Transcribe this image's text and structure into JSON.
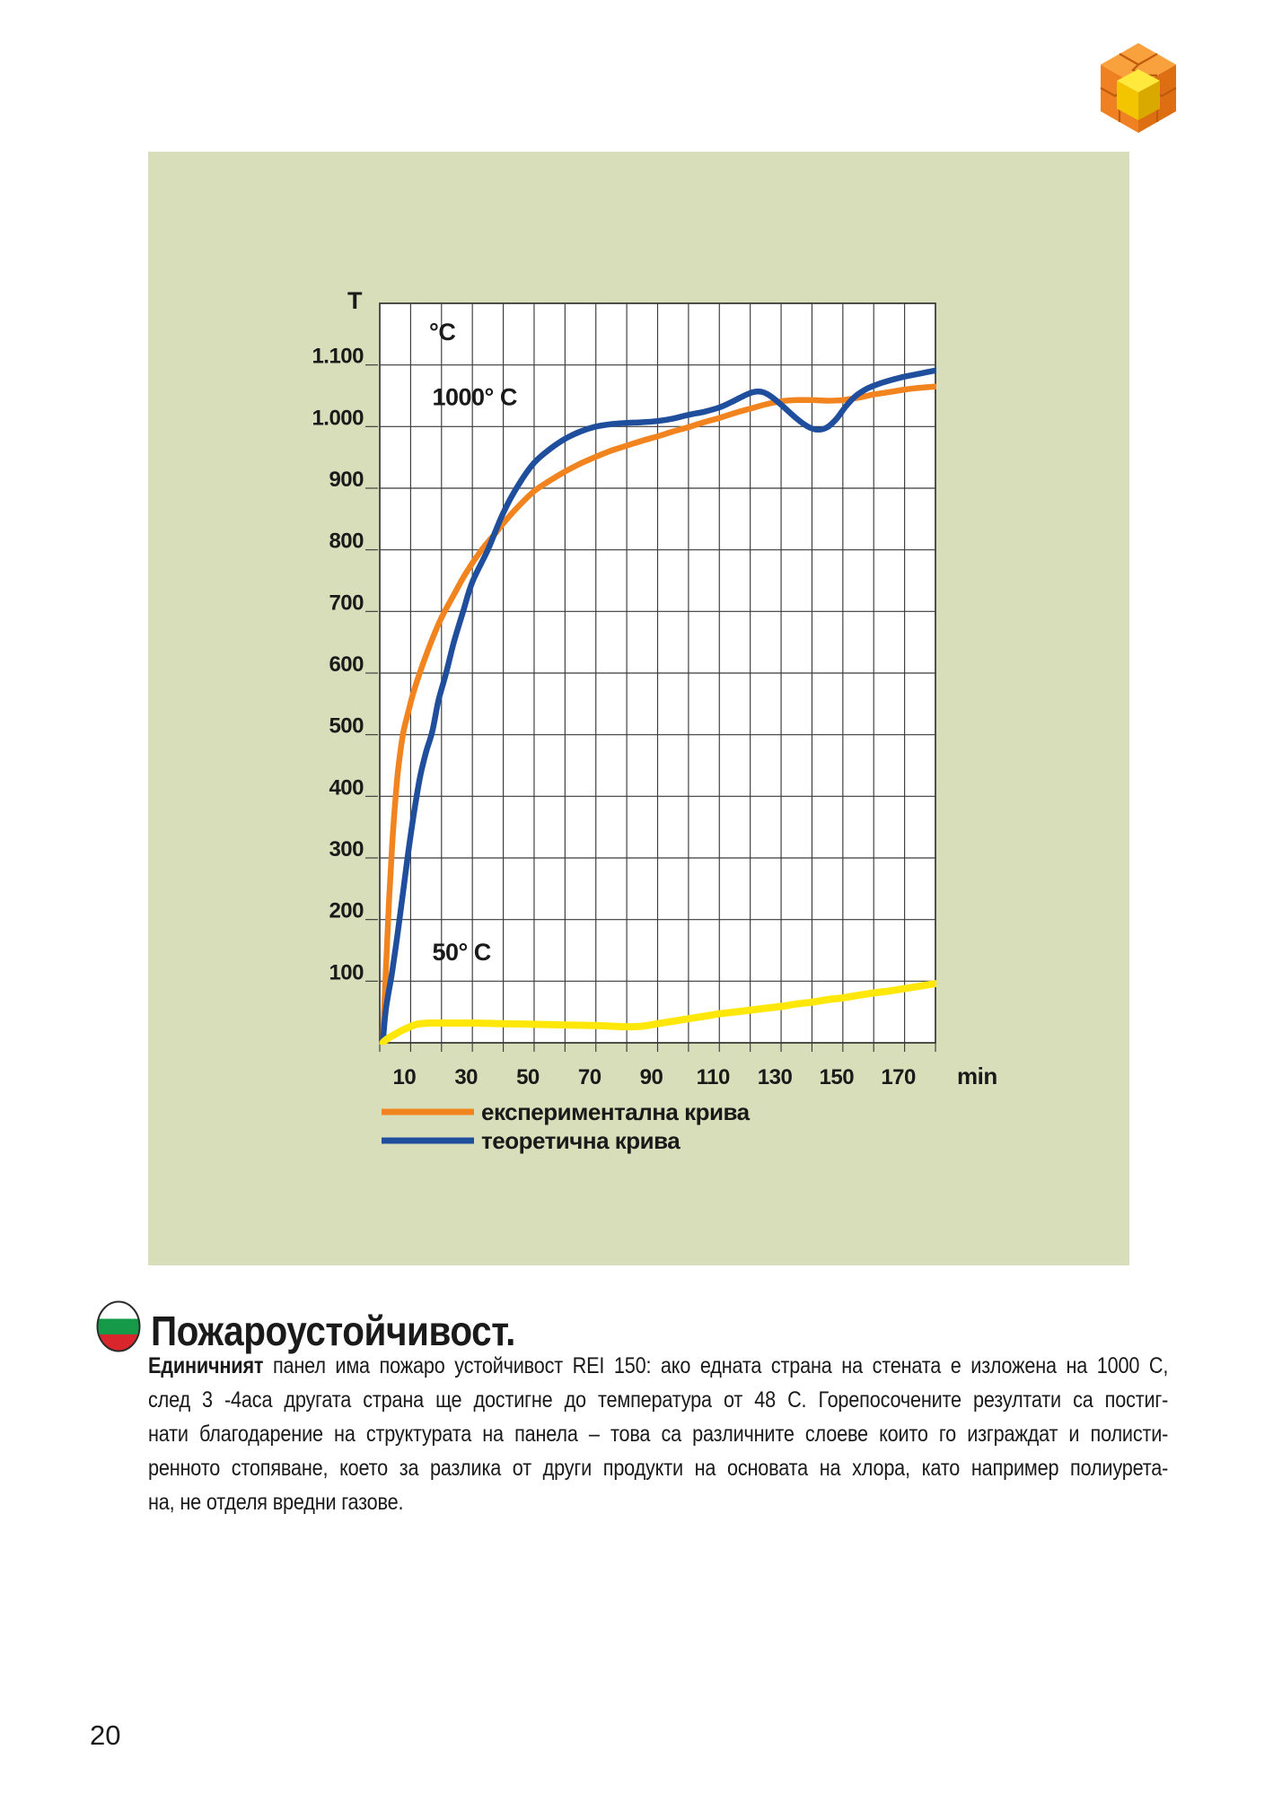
{
  "page": {
    "number": "20",
    "background": "#FFFFFF"
  },
  "panel": {
    "background": "#D9DEBA"
  },
  "logo": {
    "name": "puzzle-cube",
    "colors": {
      "top": "#F9A13C",
      "left": "#EF8122",
      "right": "#DD6E12",
      "seam": "#C05A0C",
      "piece_top": "#FFE93C",
      "piece_front": "#F2C500",
      "piece_side": "#D9A900"
    }
  },
  "flag_icon": {
    "white": "#FFFFFF",
    "green": "#159A49",
    "red": "#D8262C",
    "outline": "#2B2B2B"
  },
  "chart": {
    "axis_title": "T",
    "unit_label": "°C",
    "x_unit_label": "min",
    "text_color": "#1a1a1a",
    "grid_color": "#3A3A3A",
    "plot_background": "#FFFFFF"
  },
  "chart_data": {
    "type": "line",
    "title": "",
    "xlabel": "min",
    "ylabel": "T (°C)",
    "xlim": [
      0,
      180
    ],
    "ylim": [
      0,
      1200
    ],
    "grid": true,
    "x_grid_step": 10,
    "y_grid_step": 100,
    "legend_position": "below",
    "x_ticks": [
      {
        "v": 10,
        "label": "10"
      },
      {
        "v": 30,
        "label": "30"
      },
      {
        "v": 50,
        "label": "50"
      },
      {
        "v": 70,
        "label": "70"
      },
      {
        "v": 90,
        "label": "90"
      },
      {
        "v": 110,
        "label": "110"
      },
      {
        "v": 130,
        "label": "130"
      },
      {
        "v": 150,
        "label": "150"
      },
      {
        "v": 170,
        "label": "170"
      }
    ],
    "y_ticks": [
      {
        "v": 100,
        "label": "100"
      },
      {
        "v": 200,
        "label": "200"
      },
      {
        "v": 300,
        "label": "300"
      },
      {
        "v": 400,
        "label": "400"
      },
      {
        "v": 500,
        "label": "500"
      },
      {
        "v": 600,
        "label": "600"
      },
      {
        "v": 700,
        "label": "700"
      },
      {
        "v": 800,
        "label": "800"
      },
      {
        "v": 900,
        "label": "900"
      },
      {
        "v": 1000,
        "label": "1.000"
      },
      {
        "v": 1100,
        "label": "1.100"
      }
    ],
    "annotations": [
      {
        "text": "°C",
        "t": 16,
        "T": 1140
      },
      {
        "text": "1000° C",
        "t": 17,
        "T": 1035
      },
      {
        "text": "50° C",
        "t": 17,
        "T": 134
      }
    ],
    "series": [
      {
        "name": "експериментална крива",
        "color": "#F28420",
        "in_legend": true,
        "points": [
          [
            1,
            0
          ],
          [
            2,
            120
          ],
          [
            3,
            230
          ],
          [
            4,
            320
          ],
          [
            5,
            390
          ],
          [
            6,
            445
          ],
          [
            7.5,
            500
          ],
          [
            9,
            532
          ],
          [
            11,
            570
          ],
          [
            14,
            615
          ],
          [
            17,
            655
          ],
          [
            20,
            690
          ],
          [
            24,
            727
          ],
          [
            28,
            763
          ],
          [
            33,
            800
          ],
          [
            37,
            824
          ],
          [
            40,
            843
          ],
          [
            45,
            871
          ],
          [
            50,
            895
          ],
          [
            55,
            912
          ],
          [
            60,
            927
          ],
          [
            65,
            940
          ],
          [
            70,
            951
          ],
          [
            75,
            961
          ],
          [
            80,
            969
          ],
          [
            85,
            977
          ],
          [
            90,
            984
          ],
          [
            95,
            992
          ],
          [
            100,
            999
          ],
          [
            105,
            1007
          ],
          [
            110,
            1014
          ],
          [
            115,
            1022
          ],
          [
            120,
            1029
          ],
          [
            125,
            1036
          ],
          [
            130,
            1041
          ],
          [
            135,
            1043
          ],
          [
            140,
            1043
          ],
          [
            145,
            1042
          ],
          [
            150,
            1043
          ],
          [
            155,
            1047
          ],
          [
            160,
            1052
          ],
          [
            165,
            1056
          ],
          [
            170,
            1060
          ],
          [
            175,
            1063
          ],
          [
            180,
            1065
          ]
        ]
      },
      {
        "name": "теоретична крива",
        "color": "#1F4E9C",
        "in_legend": true,
        "points": [
          [
            1,
            0
          ],
          [
            2,
            55
          ],
          [
            4,
            115
          ],
          [
            6,
            185
          ],
          [
            9,
            300
          ],
          [
            11,
            370
          ],
          [
            13,
            430
          ],
          [
            15,
            472
          ],
          [
            17,
            505
          ],
          [
            19,
            555
          ],
          [
            21.5,
            600
          ],
          [
            24,
            650
          ],
          [
            27,
            700
          ],
          [
            30,
            748
          ],
          [
            35,
            800
          ],
          [
            40,
            860
          ],
          [
            45,
            906
          ],
          [
            50,
            941
          ],
          [
            55,
            963
          ],
          [
            60,
            980
          ],
          [
            65,
            992
          ],
          [
            70,
            1000
          ],
          [
            75,
            1004
          ],
          [
            80,
            1006
          ],
          [
            85,
            1007
          ],
          [
            90,
            1009
          ],
          [
            95,
            1013
          ],
          [
            100,
            1019
          ],
          [
            105,
            1024
          ],
          [
            110,
            1031
          ],
          [
            114,
            1040
          ],
          [
            118,
            1050
          ],
          [
            121,
            1056
          ],
          [
            124,
            1056
          ],
          [
            127,
            1048
          ],
          [
            131,
            1031
          ],
          [
            135,
            1013
          ],
          [
            139,
            999
          ],
          [
            142,
            995
          ],
          [
            145,
            999
          ],
          [
            148,
            1013
          ],
          [
            151,
            1033
          ],
          [
            154,
            1049
          ],
          [
            158,
            1062
          ],
          [
            162,
            1070
          ],
          [
            166,
            1076
          ],
          [
            170,
            1081
          ],
          [
            175,
            1086
          ],
          [
            180,
            1091
          ]
        ]
      },
      {
        "name": "50° C",
        "color": "#FFE70A",
        "in_legend": false,
        "points": [
          [
            1,
            0
          ],
          [
            2,
            5
          ],
          [
            5,
            14
          ],
          [
            8,
            22
          ],
          [
            12,
            30
          ],
          [
            16,
            32
          ],
          [
            22,
            32
          ],
          [
            30,
            32
          ],
          [
            40,
            31
          ],
          [
            50,
            30
          ],
          [
            60,
            29
          ],
          [
            70,
            28
          ],
          [
            75,
            27
          ],
          [
            80,
            26
          ],
          [
            85,
            27
          ],
          [
            90,
            31
          ],
          [
            95,
            35
          ],
          [
            100,
            39
          ],
          [
            105,
            43
          ],
          [
            110,
            47
          ],
          [
            115,
            50
          ],
          [
            120,
            53
          ],
          [
            125,
            56
          ],
          [
            130,
            59
          ],
          [
            135,
            63
          ],
          [
            140,
            66
          ],
          [
            145,
            70
          ],
          [
            150,
            73
          ],
          [
            155,
            77
          ],
          [
            160,
            81
          ],
          [
            165,
            84
          ],
          [
            170,
            88
          ],
          [
            175,
            92
          ],
          [
            180,
            96
          ]
        ]
      }
    ]
  },
  "section": {
    "title": "Пожароустойчивост.",
    "lead_word": "Единичният",
    "line1_rest": " панел има пожаро устойчивост REI 150: ако едната страна на стената е изложена на 1000 С,",
    "line2": "след 3 -4аса другата страна ще достигне до температура от 48 С. Горепосочените резултати са постиг-",
    "line3": "нати благодарение на структурата на панела – това са различните слоеве които го изграждат и полисти-",
    "line4": "ренното стопяване, което за разлика от други продукти на основата на хлора, като например полиурета-",
    "line5": "на, не отделя вредни газове."
  }
}
